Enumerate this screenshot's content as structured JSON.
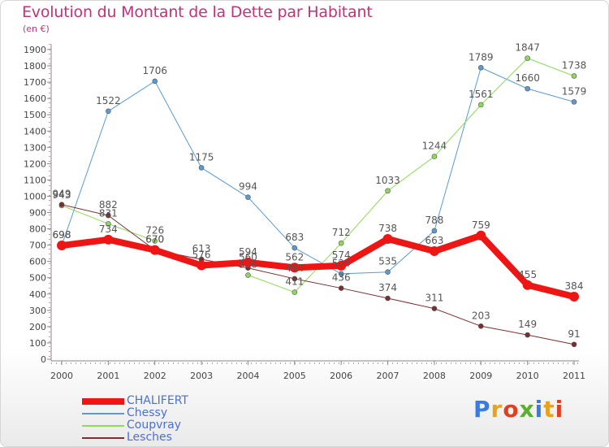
{
  "header": {
    "title": "Evolution du Montant de la Dette par Habitant",
    "unit": "(en €)"
  },
  "logo": {
    "text": "Proxiti",
    "colors": [
      "#3a7be0",
      "#e8a21b",
      "#e04020",
      "#58b030",
      "#3a7be0",
      "#e8a21b",
      "#e04020"
    ]
  },
  "chart_data": {
    "type": "line",
    "title": "Evolution du Montant de la Dette par Habitant",
    "ylabel": "(en €)",
    "x": [
      "2000",
      "2001",
      "2002",
      "2003",
      "2004",
      "2005",
      "2006",
      "2007",
      "2008",
      "2009",
      "2010",
      "2011"
    ],
    "ylim": [
      0,
      1900
    ],
    "yticks": [
      0,
      100,
      200,
      300,
      400,
      500,
      600,
      700,
      800,
      900,
      1000,
      1100,
      1200,
      1300,
      1400,
      1500,
      1600,
      1700,
      1800,
      1900
    ],
    "grid": false,
    "legend_position": "bottom-left",
    "series": [
      {
        "name": "Chessy",
        "color": "#5a9ad0",
        "values": [
          698,
          1522,
          1706,
          1175,
          994,
          683,
          524,
          535,
          788,
          1789,
          1660,
          1579
        ]
      },
      {
        "name": "Coupvray",
        "color": "#8fd85a",
        "values": [
          943,
          831,
          726,
          null,
          516,
          411,
          712,
          1033,
          1244,
          1561,
          1847,
          1738
        ]
      },
      {
        "name": "Lesches",
        "color": "#7a2e2e",
        "values": [
          949,
          882,
          670,
          613,
          560,
          494,
          436,
          374,
          311,
          203,
          149,
          91
        ]
      },
      {
        "name": "CHALIFERT",
        "color": "#ee1515",
        "values": [
          698,
          734,
          670,
          576,
          594,
          562,
          574,
          738,
          663,
          759,
          455,
          384
        ]
      }
    ]
  }
}
